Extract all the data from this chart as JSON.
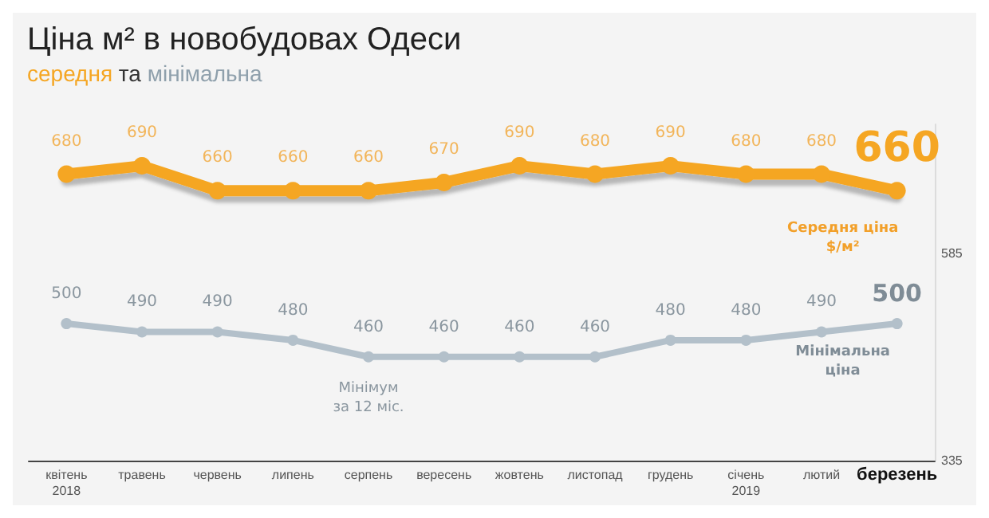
{
  "chart_data": {
    "type": "line",
    "title": "Ціна м² в новобудовах Одеси",
    "subtitle": "середня та мінімальна",
    "categories": [
      "квітень\n2018",
      "травень",
      "червень",
      "липень",
      "серпень",
      "вересень",
      "жовтень",
      "листопад",
      "грудень",
      "січень\n2019",
      "лютий",
      "березень"
    ],
    "series": [
      {
        "name": "Середня ціна\n$/м²",
        "color": "#f5a623",
        "values": [
          680,
          690,
          660,
          660,
          660,
          670,
          690,
          680,
          690,
          680,
          680,
          660
        ]
      },
      {
        "name": "Мінімальна\nціна",
        "color": "#b3c0ca",
        "values": [
          500,
          490,
          490,
          480,
          460,
          460,
          460,
          460,
          480,
          480,
          490,
          500
        ]
      }
    ],
    "annotations": [
      {
        "text": "Мінімум\nза 12 міс.",
        "x": "серпень",
        "y": 460
      }
    ],
    "ylim": [
      335,
      740
    ],
    "yticks": [
      335,
      585
    ],
    "grid": false,
    "legend": false,
    "data_labels": true,
    "marker": "circle",
    "line_style": "solid"
  }
}
